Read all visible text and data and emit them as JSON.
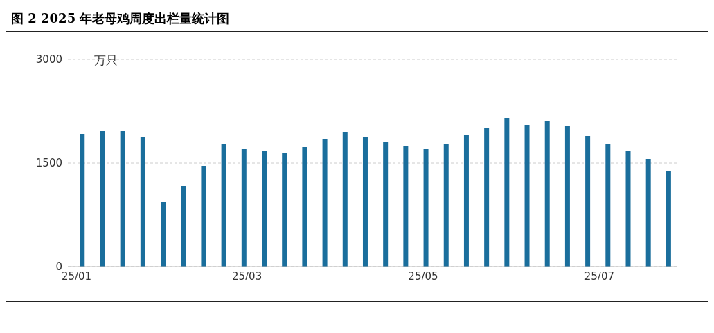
{
  "chart_data": {
    "type": "bar",
    "title": "图 2 2025 年老母鸡周度出栏量统计图",
    "ylabel": "万只",
    "x": [
      "2025-01-03",
      "2025-01-10",
      "2025-01-17",
      "2025-01-24",
      "2025-01-31",
      "2025-02-07",
      "2025-02-14",
      "2025-02-21",
      "2025-02-28",
      "2025-03-07",
      "2025-03-14",
      "2025-03-21",
      "2025-03-28",
      "2025-04-04",
      "2025-04-11",
      "2025-04-18",
      "2025-04-25",
      "2025-05-02",
      "2025-05-09",
      "2025-05-16",
      "2025-05-23",
      "2025-05-30",
      "2025-06-06",
      "2025-06-13",
      "2025-06-20",
      "2025-06-27",
      "2025-07-04",
      "2025-07-11",
      "2025-07-18",
      "2025-07-25"
    ],
    "values": [
      1920,
      1960,
      1960,
      1870,
      940,
      1170,
      1460,
      1780,
      1710,
      1680,
      1640,
      1730,
      1850,
      1950,
      1870,
      1810,
      1750,
      1710,
      1780,
      1910,
      2010,
      2150,
      2050,
      2110,
      2030,
      1890,
      1780,
      1680,
      1560,
      1380
    ],
    "color": "#1a6e9c",
    "xlim": [
      "2024-12-29",
      "2025-07-28"
    ],
    "xticks": [
      {
        "value": "2025-01-01",
        "label": "25/01"
      },
      {
        "value": "2025-03-01",
        "label": "25/03"
      },
      {
        "value": "2025-05-01",
        "label": "25/05"
      },
      {
        "value": "2025-07-01",
        "label": "25/07"
      }
    ],
    "ylim": [
      0,
      3000
    ],
    "yticks": [
      0,
      1500,
      3000
    ],
    "grid": "y",
    "legend": false
  }
}
